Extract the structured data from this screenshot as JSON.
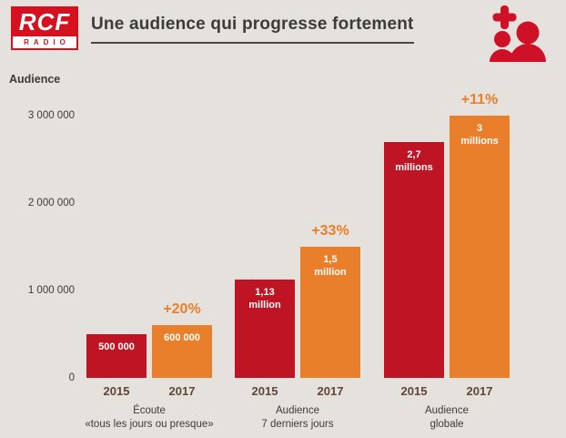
{
  "page": {
    "background": "#e5e2dd"
  },
  "header": {
    "logo": {
      "text": "RCF",
      "subtext": "RADIO"
    },
    "title": "Une audience qui progresse fortement"
  },
  "chart_data": {
    "type": "bar",
    "title": "Une audience qui progresse fortement",
    "ylabel": "Audience",
    "ylim": [
      0,
      3000000
    ],
    "grid": false,
    "legend": "none",
    "y_ticks": [
      {
        "value": 3000000,
        "label": "3 000 000"
      },
      {
        "value": 2000000,
        "label": "2 000 000"
      },
      {
        "value": 1000000,
        "label": "1 000 000"
      },
      {
        "value": 0,
        "label": "0"
      }
    ],
    "colors": {
      "2015": "#bf1423",
      "2017": "#e97e2b"
    },
    "series": [
      {
        "name": "2015",
        "values": [
          500000,
          1130000,
          2700000
        ]
      },
      {
        "name": "2017",
        "values": [
          600000,
          1500000,
          3000000
        ]
      }
    ],
    "groups": [
      {
        "category_lines": [
          "Écoute",
          "«tous les jours ou presque»"
        ],
        "growth_label": "+20%",
        "bars": [
          {
            "year": "2015",
            "value": 500000,
            "label_lines": [
              "500 000"
            ]
          },
          {
            "year": "2017",
            "value": 600000,
            "label_lines": [
              "600 000"
            ]
          }
        ]
      },
      {
        "category_lines": [
          "Audience",
          "7 derniers jours"
        ],
        "growth_label": "+33%",
        "bars": [
          {
            "year": "2015",
            "value": 1130000,
            "label_lines": [
              "1,13",
              "million"
            ]
          },
          {
            "year": "2017",
            "value": 1500000,
            "label_lines": [
              "1,5",
              "million"
            ]
          }
        ]
      },
      {
        "category_lines": [
          "Audience",
          "globale"
        ],
        "growth_label": "+11%",
        "bars": [
          {
            "year": "2015",
            "value": 2700000,
            "label_lines": [
              "2,7",
              "millions"
            ]
          },
          {
            "year": "2017",
            "value": 3000000,
            "label_lines": [
              "3",
              "millions"
            ]
          }
        ]
      }
    ]
  }
}
